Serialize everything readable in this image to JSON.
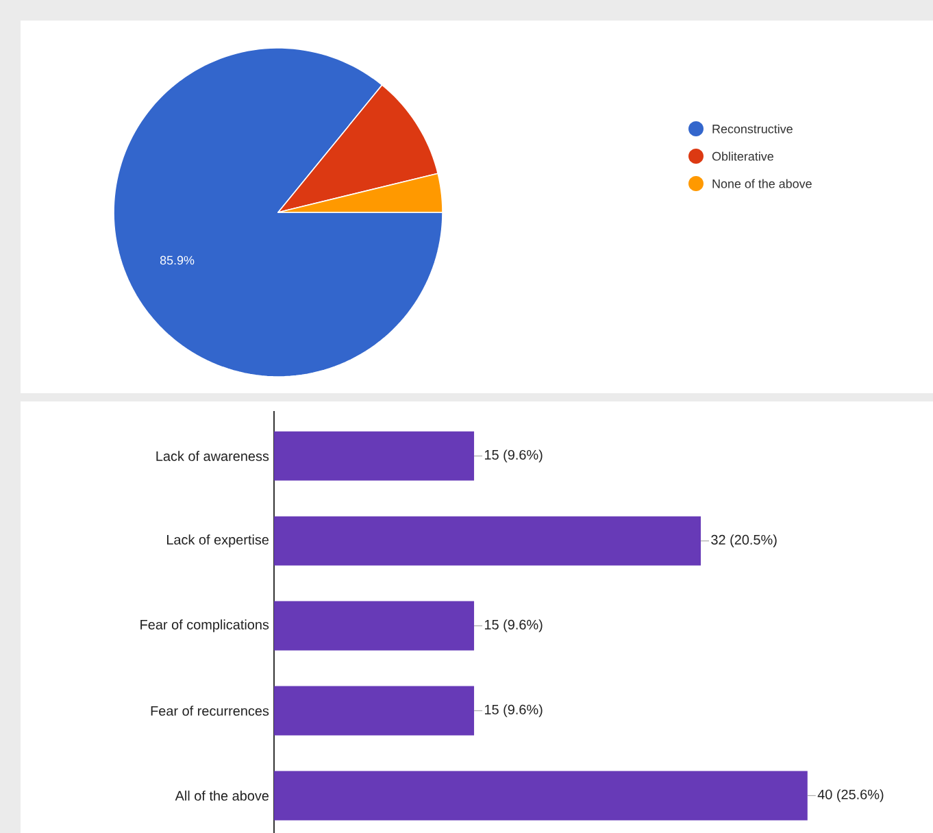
{
  "chart_data": [
    {
      "type": "pie",
      "categories": [
        "Reconstructive",
        "Obliterative",
        "None of the above"
      ],
      "values": [
        85.9,
        10.3,
        3.8
      ],
      "colors": [
        "#3366cc",
        "#dc3912",
        "#ff9900"
      ],
      "value_labels": [
        "85.9%",
        null,
        null
      ],
      "legend": "top right"
    },
    {
      "type": "bar",
      "orientation": "horizontal",
      "categories": [
        "Lack of awareness",
        "Lack of expertise",
        "Fear of complications",
        "Fear of recurrences",
        "All of the above"
      ],
      "values": [
        15,
        32,
        15,
        15,
        40
      ],
      "color": "#673ab7",
      "value_labels": [
        "15 (9.6%)",
        "32 (20.5%)",
        "15 (9.6%)",
        "15 (9.6%)",
        "40 (25.6%)"
      ],
      "xlim": [
        0,
        49
      ],
      "tick_labels": "y"
    }
  ]
}
